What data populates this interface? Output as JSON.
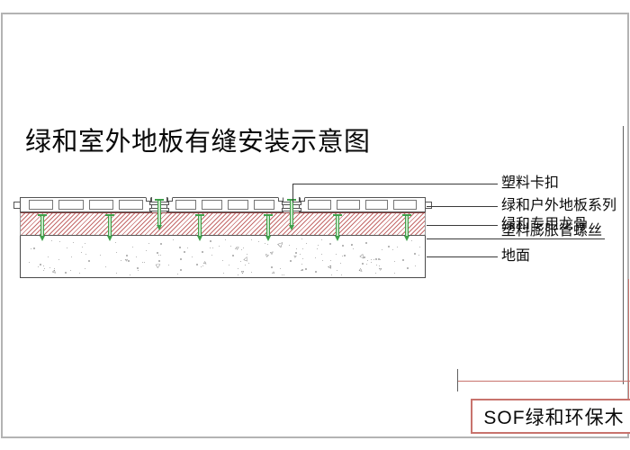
{
  "title": "绿和室外地板有缝安装示意图",
  "callouts": [
    {
      "text": "塑料卡扣"
    },
    {
      "text": "绿和户外地板系列"
    },
    {
      "text": "绿和专用龙骨"
    },
    {
      "text": "塑料膨胀管螺丝"
    },
    {
      "text": "地面"
    }
  ],
  "stamp": {
    "text": "SOF绿和环保木"
  },
  "colors": {
    "hatch_red": "#c46a6a",
    "screw_green": "#3fa04a",
    "stamp_border_red": "#c8736d",
    "leader_line": "#3a3a3a",
    "page_border_gray": "#b3b3b3"
  }
}
